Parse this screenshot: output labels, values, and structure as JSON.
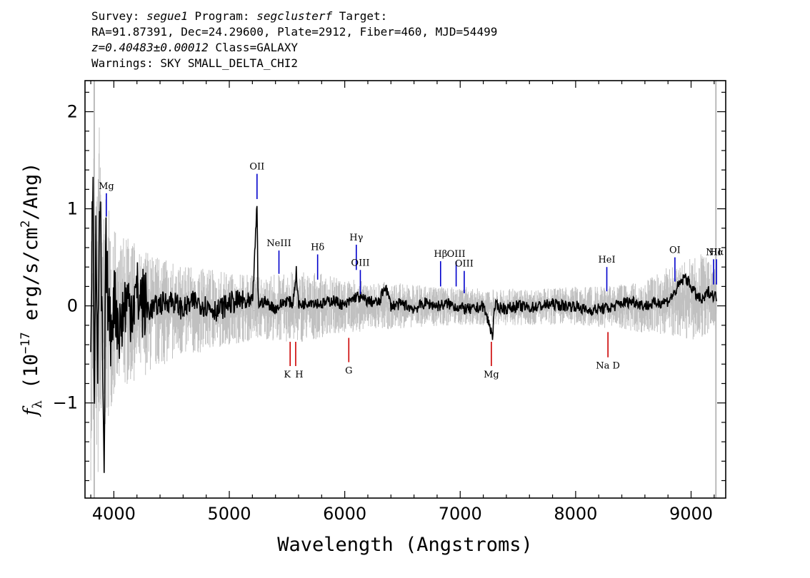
{
  "header": {
    "line1_prefix": "Survey: ",
    "survey": "segue1",
    "line1_mid": " Program: ",
    "program": "segclusterf",
    "line1_suffix": " Target:",
    "line2": "RA=91.87391, Dec=24.29600, Plate=2912, Fiber=460, MJD=54499",
    "redshift": "z=0.40483±0.00012",
    "line3_suffix": " Class=GALAXY",
    "line4": "Warnings: SKY SMALL_DELTA_CHI2"
  },
  "chart_data": {
    "type": "line",
    "title": "",
    "xlabel": "Wavelength (Angstroms)",
    "ylabel": "f_λ (10^-17 erg/s/cm^2/Ang)",
    "xlim": [
      3750,
      9300
    ],
    "ylim": [
      -1.98,
      2.32
    ],
    "x_ticks": [
      4000,
      5000,
      6000,
      7000,
      8000,
      9000
    ],
    "x_tick_labels": [
      "4000",
      "5000",
      "6000",
      "7000",
      "8000",
      "9000"
    ],
    "y_ticks": [
      -1,
      0,
      1,
      2
    ],
    "y_tick_labels": [
      "−1",
      "0",
      "1",
      "2"
    ],
    "series": [
      {
        "role": "noise",
        "color": "#c0c0c0",
        "x": [
          3800,
          3830,
          3850,
          3870,
          3900,
          3930,
          3960,
          4000,
          4050,
          4100,
          4150,
          4200,
          4300,
          4400,
          4500,
          4600,
          4700,
          4800,
          4900,
          5000,
          5100,
          5200,
          5300,
          5400,
          5500,
          5600,
          5700,
          5800,
          5900,
          6000,
          6200,
          6400,
          6600,
          6800,
          7000,
          7200,
          7400,
          7600,
          7800,
          8000,
          8200,
          8400,
          8600,
          8800,
          9000,
          9100,
          9200
        ],
        "upper": [
          0.9,
          1.8,
          1.6,
          2.0,
          1.3,
          1.2,
          0.95,
          0.8,
          0.75,
          0.7,
          0.7,
          0.6,
          0.55,
          0.5,
          0.45,
          0.42,
          0.4,
          0.38,
          0.36,
          0.34,
          0.33,
          0.32,
          0.3,
          0.33,
          0.34,
          0.36,
          0.34,
          0.33,
          0.3,
          0.28,
          0.26,
          0.24,
          0.22,
          0.2,
          0.2,
          0.18,
          0.18,
          0.17,
          0.18,
          0.2,
          0.2,
          0.22,
          0.25,
          0.4,
          0.5,
          0.55,
          0.4
        ],
        "lower": [
          -1.8,
          -1.9,
          -1.7,
          -1.9,
          -1.5,
          -1.3,
          -1.1,
          -0.95,
          -0.9,
          -0.85,
          -0.8,
          -0.75,
          -0.7,
          -0.62,
          -0.57,
          -0.53,
          -0.5,
          -0.47,
          -0.43,
          -0.4,
          -0.38,
          -0.36,
          -0.34,
          -0.36,
          -0.38,
          -0.38,
          -0.36,
          -0.33,
          -0.3,
          -0.28,
          -0.26,
          -0.24,
          -0.22,
          -0.21,
          -0.2,
          -0.2,
          -0.2,
          -0.2,
          -0.2,
          -0.2,
          -0.22,
          -0.25,
          -0.28,
          -0.3,
          -0.35,
          -0.35,
          -0.3
        ]
      },
      {
        "role": "flux",
        "color": "#000000",
        "x": [
          3800,
          3820,
          3830,
          3845,
          3860,
          3880,
          3900,
          3915,
          3930,
          3950,
          3970,
          4000,
          4050,
          4100,
          4150,
          4200,
          4300,
          4400,
          4500,
          4600,
          4700,
          4800,
          4900,
          5000,
          5100,
          5200,
          5240,
          5245,
          5250,
          5260,
          5300,
          5400,
          5500,
          5550,
          5580,
          5600,
          5700,
          5800,
          5900,
          6000,
          6100,
          6200,
          6300,
          6350,
          6400,
          6500,
          6600,
          6700,
          6800,
          6900,
          7000,
          7100,
          7200,
          7280,
          7300,
          7400,
          7500,
          7600,
          7700,
          7800,
          7900,
          8000,
          8100,
          8200,
          8300,
          8400,
          8500,
          8600,
          8700,
          8800,
          8850,
          8900,
          8950,
          9000,
          9050,
          9100,
          9150,
          9200
        ],
        "y": [
          -0.2,
          1.55,
          -0.9,
          0.7,
          -0.6,
          1.0,
          -0.4,
          -1.9,
          0.6,
          0.05,
          -0.3,
          0.1,
          -0.25,
          0.05,
          0.0,
          0.12,
          -0.05,
          0.02,
          0.06,
          -0.04,
          0.05,
          0.0,
          -0.05,
          0.03,
          0.05,
          0.0,
          1.05,
          0.5,
          0.0,
          0.02,
          0.05,
          -0.03,
          0.06,
          0.02,
          0.35,
          0.0,
          0.05,
          0.02,
          0.06,
          0.0,
          0.1,
          0.05,
          0.03,
          0.22,
          0.0,
          0.02,
          -0.03,
          0.03,
          0.0,
          0.02,
          -0.02,
          -0.04,
          0.0,
          -0.3,
          0.0,
          -0.03,
          0.0,
          -0.02,
          0.0,
          0.02,
          0.0,
          0.0,
          -0.05,
          -0.03,
          -0.02,
          0.03,
          0.05,
          0.0,
          0.03,
          0.05,
          0.12,
          0.22,
          0.3,
          0.2,
          0.1,
          0.05,
          0.15,
          0.1
        ]
      }
    ],
    "emission_lines": [
      {
        "label": "Mg",
        "x": 3935,
        "y_top": 1.16,
        "y_bottom": 0.92
      },
      {
        "label": "OII",
        "x": 5240,
        "y_top": 1.36,
        "y_bottom": 1.1
      },
      {
        "label": "NeIII",
        "x": 5430,
        "y_top": 0.57,
        "y_bottom": 0.33
      },
      {
        "label": "Hδ",
        "x": 5765,
        "y_top": 0.53,
        "y_bottom": 0.27
      },
      {
        "label": "Hγ",
        "x": 6100,
        "y_top": 0.63,
        "y_bottom": 0.37
      },
      {
        "label": "OIII",
        "x": 6135,
        "y_top": 0.37,
        "y_bottom": 0.12
      },
      {
        "label": "Hβ",
        "x": 6830,
        "y_top": 0.46,
        "y_bottom": 0.2
      },
      {
        "label": "OIII",
        "x": 6965,
        "y_top": 0.46,
        "y_bottom": 0.2
      },
      {
        "label": "OIII",
        "x": 7035,
        "y_top": 0.36,
        "y_bottom": 0.13
      },
      {
        "label": "HeI",
        "x": 8270,
        "y_top": 0.4,
        "y_bottom": 0.15
      },
      {
        "label": "OI",
        "x": 8860,
        "y_top": 0.5,
        "y_bottom": 0.25
      },
      {
        "label": "NII",
        "x": 9195,
        "y_top": 0.48,
        "y_bottom": 0.22
      },
      {
        "label": "Hα",
        "x": 9220,
        "y_top": 0.48,
        "y_bottom": 0.22
      }
    ],
    "absorption_lines": [
      {
        "label": "K",
        "x": 5527,
        "y_top": -0.37,
        "y_bottom": -0.62
      },
      {
        "label": "H",
        "x": 5575,
        "y_top": -0.37,
        "y_bottom": -0.62
      },
      {
        "label": "G",
        "x": 6035,
        "y_top": -0.33,
        "y_bottom": -0.58
      },
      {
        "label": "Mg",
        "x": 7270,
        "y_top": -0.37,
        "y_bottom": -0.62
      },
      {
        "label": "Na D",
        "x": 8280,
        "y_top": -0.27,
        "y_bottom": -0.53
      }
    ],
    "emission_color": "#0000cc",
    "absorption_color": "#cc0000",
    "grid": false,
    "legend": "none"
  }
}
